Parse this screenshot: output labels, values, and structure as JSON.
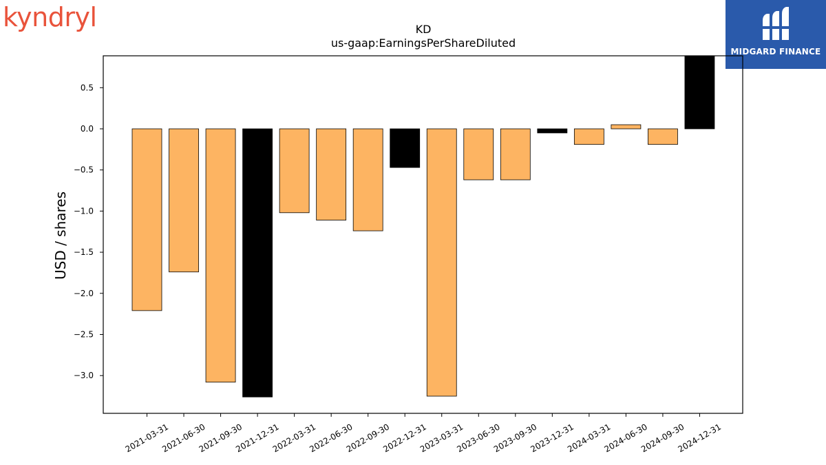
{
  "branding": {
    "left_logo_text": "kyndryl",
    "right_logo_text": "MIDGARD FINANCE",
    "colors": {
      "kyndryl": "#e9533b",
      "midgard_bg": "#2a5aab",
      "midgard_text": "#ffffff"
    }
  },
  "chart_data": {
    "type": "bar",
    "title": "KD",
    "subtitle": "us-gaap:EarningsPerShareDiluted",
    "xlabel": "",
    "ylabel": "USD / shares",
    "ylim": [
      -3.5,
      0.9
    ],
    "yticks": [
      0.5,
      0.0,
      -0.5,
      -1.0,
      -1.5,
      -2.0,
      -2.5,
      -3.0
    ],
    "ytick_labels": [
      "0.5",
      "0.0",
      "−0.5",
      "−1.0",
      "−1.5",
      "−2.0",
      "−2.5",
      "−3.0"
    ],
    "grid": false,
    "categories": [
      "2021-03-31",
      "2021-06-30",
      "2021-09-30",
      "2021-12-31",
      "2022-03-31",
      "2022-06-30",
      "2022-09-30",
      "2022-12-31",
      "2023-03-31",
      "2023-06-30",
      "2023-09-30",
      "2023-12-31",
      "2024-03-31",
      "2024-06-30",
      "2024-09-30",
      "2024-12-31"
    ],
    "values": [
      -2.21,
      -1.74,
      -3.08,
      -3.26,
      -1.02,
      -1.11,
      -1.24,
      -0.47,
      -3.25,
      -0.62,
      -0.62,
      -0.05,
      -0.19,
      0.05,
      -0.19,
      0.89
    ],
    "bar_colors": [
      "#fdb462",
      "#fdb462",
      "#fdb462",
      "#000000",
      "#fdb462",
      "#fdb462",
      "#fdb462",
      "#000000",
      "#fdb462",
      "#fdb462",
      "#fdb462",
      "#000000",
      "#fdb462",
      "#fdb462",
      "#fdb462",
      "#000000"
    ]
  }
}
